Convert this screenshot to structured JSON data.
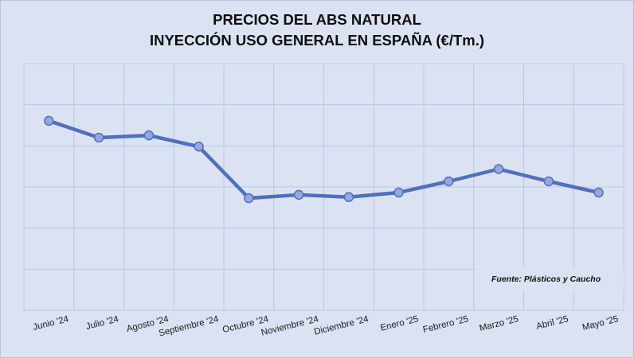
{
  "chart_data": {
    "type": "line",
    "title": "PRECIOS DEL ABS NATURAL",
    "subtitle": "INYECCIÓN USO GENERAL EN ESPAÑA (€/Tm.)",
    "categories": [
      "Junio '24",
      "Julio '24",
      "Agosto '24",
      "Septiembre '24",
      "Octubre '24",
      "Noviembre '24",
      "Diciembre '24",
      "Enero '25",
      "Febrero '25",
      "Marzo '25",
      "Abril '25",
      "Mayo '25"
    ],
    "series": [
      {
        "values": [
          8.45,
          7.7,
          7.8,
          7.3,
          5.0,
          5.15,
          5.05,
          5.25,
          5.75,
          6.3,
          5.75,
          5.25
        ]
      }
    ],
    "ylim": [
      0,
      11
    ],
    "grid": true,
    "color": "#4f6fbf",
    "marker_color": "#93a9dd",
    "source": "Fuente: Plásticos y Caucho"
  }
}
